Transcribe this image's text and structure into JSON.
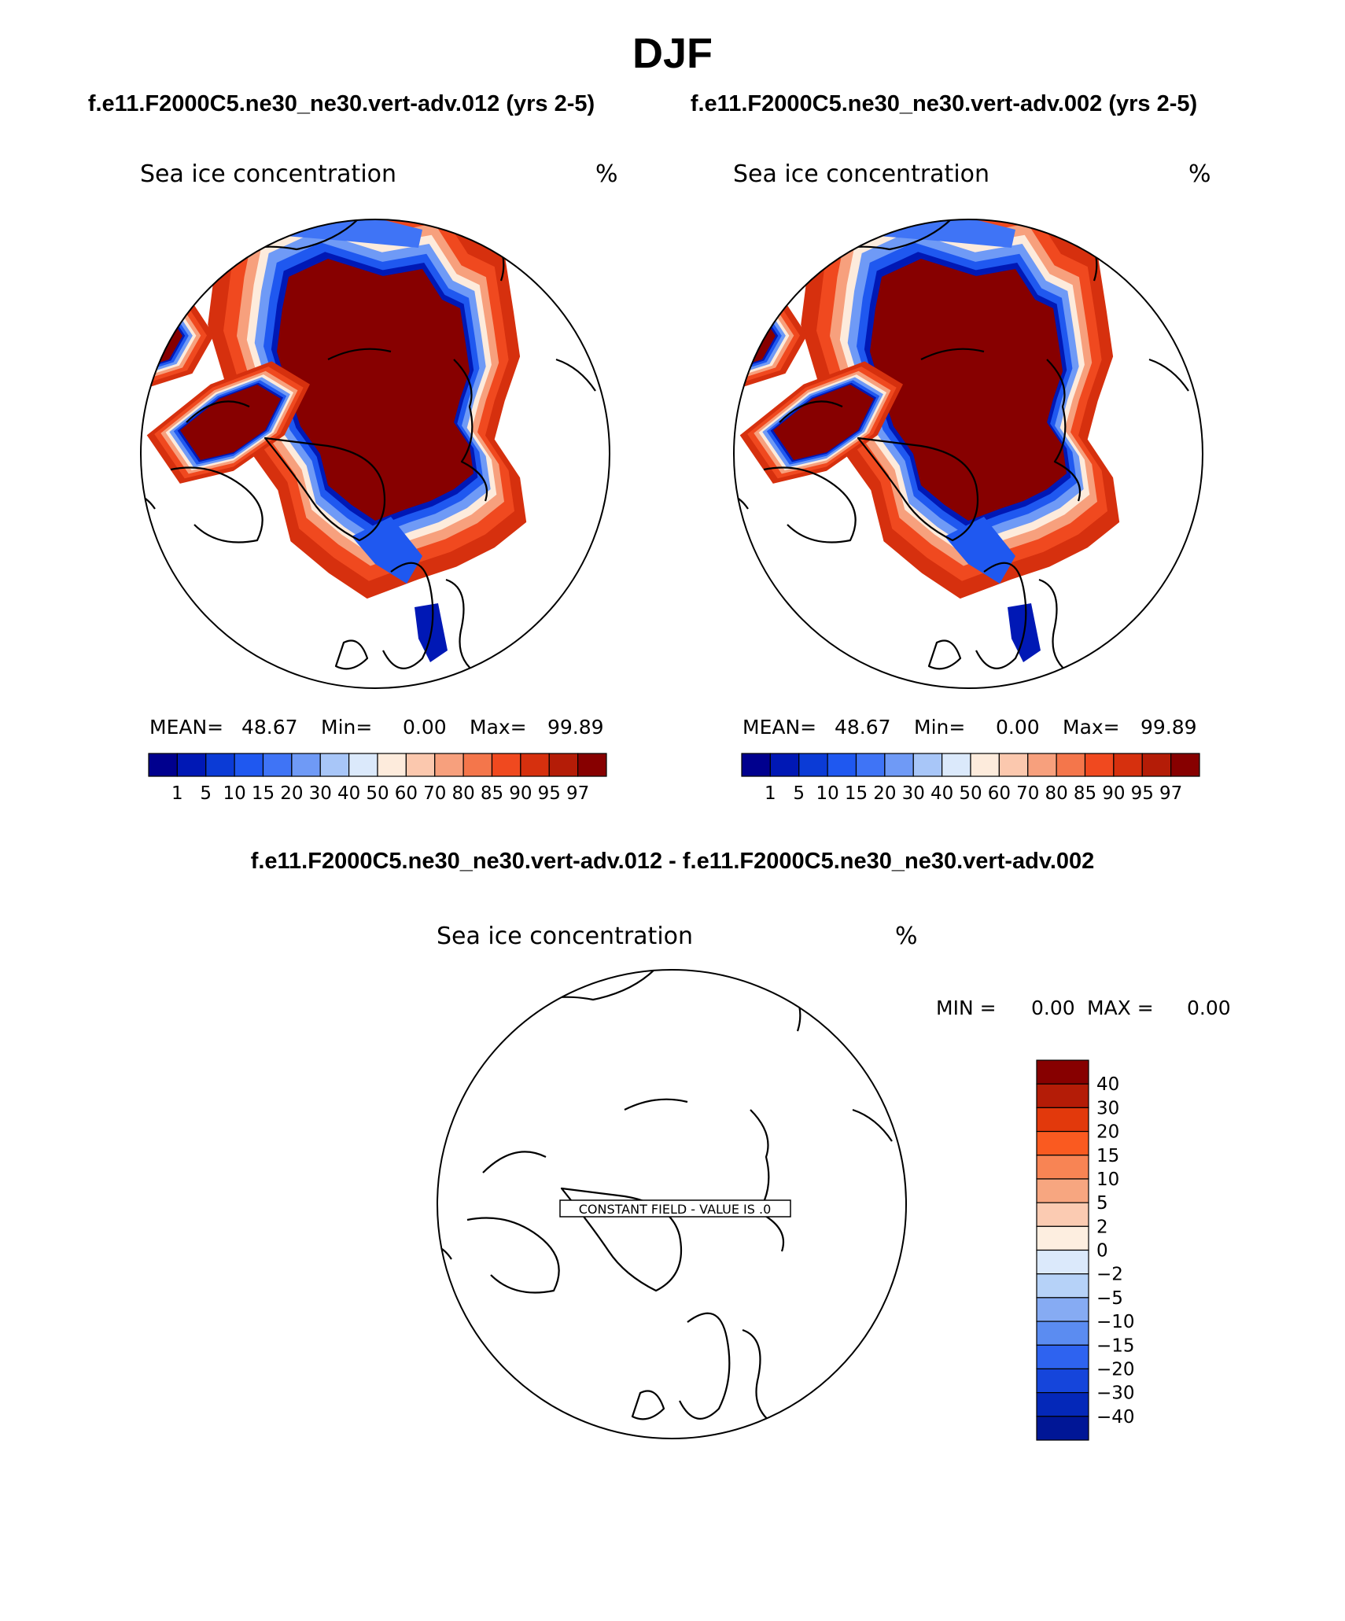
{
  "header": {
    "title": "DJF",
    "case_a": "f.e11.F2000C5.ne30_ne30.vert-adv.012 (yrs 2-5)",
    "case_b": "f.e11.F2000C5.ne30_ne30.vert-adv.002 (yrs 2-5)",
    "diff_title": "f.e11.F2000C5.ne30_ne30.vert-adv.012 - f.e11.F2000C5.ne30_ne30.vert-adv.002"
  },
  "panels": [
    {
      "variable": "Sea ice concentration",
      "units": "%",
      "stats": {
        "mean_label": "MEAN=",
        "mean": "48.67",
        "min_label": "Min=",
        "min": "0.00",
        "max_label": "Max=",
        "max": "99.89"
      }
    },
    {
      "variable": "Sea ice concentration",
      "units": "%",
      "stats": {
        "mean_label": "MEAN=",
        "mean": "48.67",
        "min_label": "Min=",
        "min": "0.00",
        "max_label": "Max=",
        "max": "99.89"
      }
    }
  ],
  "diff_panel": {
    "variable": "Sea ice concentration",
    "units": "%",
    "min_label": "MIN =",
    "min": "0.00",
    "max_label": "MAX =",
    "max": "0.00",
    "constant_label": "CONSTANT FIELD - VALUE IS .0"
  },
  "colorbar_main": {
    "colors": [
      "#00008e",
      "#0018b5",
      "#0b3bd6",
      "#1f58f0",
      "#3f74f6",
      "#6f9af6",
      "#a8c6f8",
      "#dbe9fb",
      "#fdebdc",
      "#fbc8ae",
      "#f7a07d",
      "#f4764b",
      "#f0491f",
      "#d6300e",
      "#b41c07",
      "#870000"
    ],
    "ticks": [
      "1",
      "5",
      "10",
      "15",
      "20",
      "30",
      "40",
      "50",
      "60",
      "70",
      "80",
      "85",
      "90",
      "95",
      "97"
    ]
  },
  "colorbar_diff": {
    "colors": [
      "#870000",
      "#b41c07",
      "#e2390c",
      "#fa5a20",
      "#f88454",
      "#f7a680",
      "#fbcbb2",
      "#fdeee0",
      "#dbe9fb",
      "#b6d2f8",
      "#86abf3",
      "#5b8cf1",
      "#2e63f0",
      "#1545db",
      "#0428b9",
      "#001696"
    ],
    "ticks": [
      "40",
      "30",
      "20",
      "15",
      "10",
      "5",
      "2",
      "0",
      "−2",
      "−5",
      "−10",
      "−15",
      "−20",
      "−30",
      "−40"
    ]
  },
  "map_field": {
    "core": "#870000",
    "ring_colors": [
      "#d6300e",
      "#f0491f",
      "#f7a07d",
      "#fdebdc",
      "#6f9af6",
      "#1f58f0",
      "#0018b5"
    ]
  }
}
